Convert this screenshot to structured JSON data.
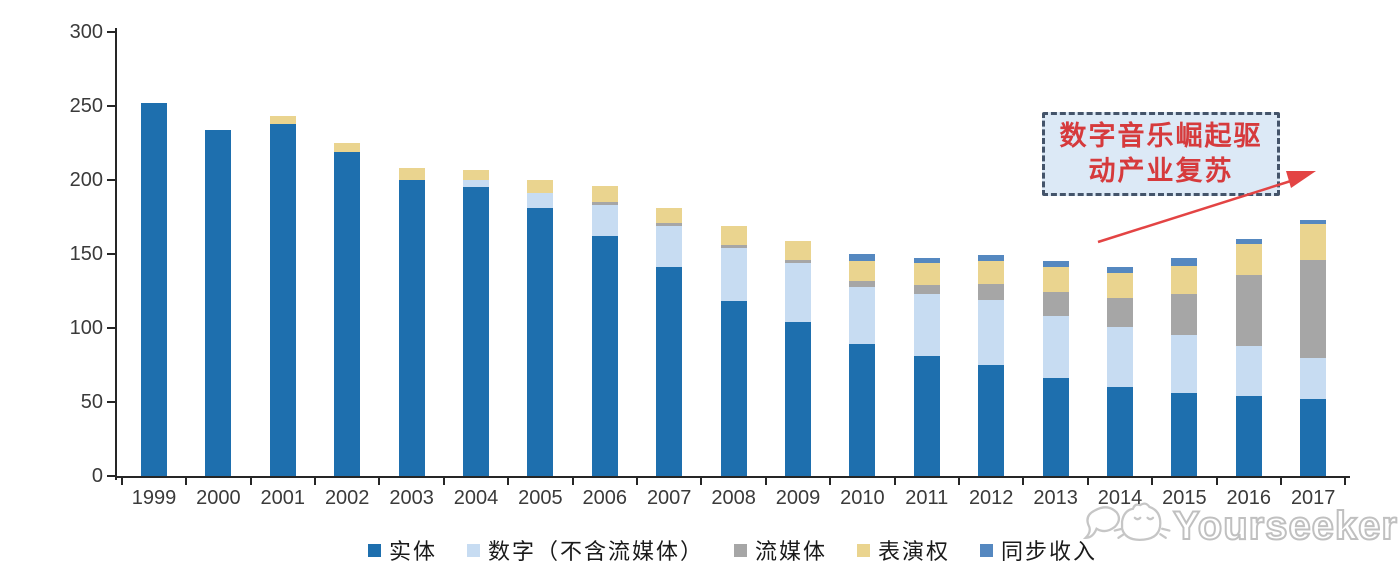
{
  "chart_data": {
    "type": "bar",
    "stacked": true,
    "title": "",
    "xlabel": "",
    "ylabel": "",
    "categories": [
      "1999",
      "2000",
      "2001",
      "2002",
      "2003",
      "2004",
      "2005",
      "2006",
      "2007",
      "2008",
      "2009",
      "2010",
      "2011",
      "2012",
      "2013",
      "2014",
      "2015",
      "2016",
      "2017"
    ],
    "series": [
      {
        "name": "实体",
        "color": "#1e6fae",
        "values": [
          252,
          234,
          238,
          219,
          200,
          195,
          181,
          162,
          141,
          118,
          104,
          89,
          81,
          75,
          66,
          60,
          56,
          54,
          52
        ]
      },
      {
        "name": "数字（不含流媒体）",
        "color": "#c7dcf2",
        "values": [
          0,
          0,
          0,
          0,
          0,
          5,
          10,
          21,
          28,
          36,
          40,
          39,
          42,
          44,
          42,
          41,
          39,
          34,
          28
        ]
      },
      {
        "name": "流媒体",
        "color": "#a6a6a6",
        "values": [
          0,
          0,
          0,
          0,
          0,
          0,
          0,
          2,
          2,
          2,
          2,
          4,
          6,
          11,
          16,
          19,
          28,
          48,
          66
        ]
      },
      {
        "name": "表演权",
        "color": "#ead48f",
        "values": [
          0,
          0,
          5,
          6,
          8,
          7,
          9,
          11,
          10,
          13,
          13,
          13,
          15,
          15,
          17,
          17,
          19,
          21,
          24
        ]
      },
      {
        "name": "同步收入",
        "color": "#5588c0",
        "values": [
          0,
          0,
          0,
          0,
          0,
          0,
          0,
          0,
          0,
          0,
          0,
          5,
          3,
          4,
          4,
          4,
          5,
          3,
          3
        ]
      }
    ],
    "totals": [
      252,
      234,
      243,
      225,
      208,
      207,
      200,
      196,
      181,
      169,
      159,
      150,
      147,
      149,
      145,
      141,
      147,
      160,
      173
    ],
    "ylim": [
      0,
      300
    ],
    "yticks": [
      0,
      50,
      100,
      150,
      200,
      250,
      300
    ],
    "grid": false,
    "legend_position": "bottom"
  },
  "annotation": {
    "full_text": "数字音乐崛起驱动产业复苏",
    "line1": "数字音乐崛起驱",
    "line2": "动产业复苏",
    "text_color": "#d63a3c",
    "fill_color": "#dce9f6",
    "border_color": "#44546a",
    "arrow_color": "#e34444"
  },
  "watermark": {
    "text": "Yourseeker"
  },
  "axis": {
    "line_color": "#262626",
    "label_color": "#3a3a3a"
  }
}
